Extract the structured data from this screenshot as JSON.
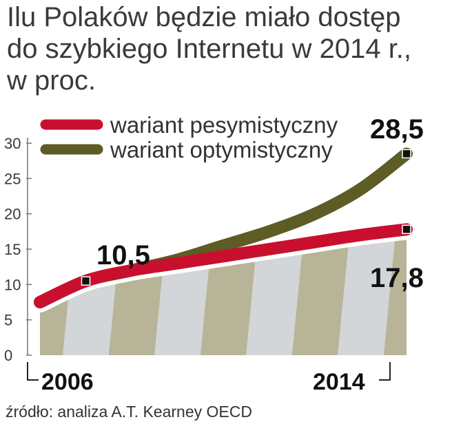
{
  "title": [
    "Ilu Polaków będzie miało dostęp",
    "do szybkiego Internetu w 2014 r.,",
    "w proc."
  ],
  "source": "źródło: analiza A.T. Kearney OECD",
  "colors": {
    "pessimistic": "#c8102e",
    "optimistic": "#5c5c24",
    "band_dark": "#b8b497",
    "band_light": "#d2d6d8"
  },
  "chart_data": {
    "type": "line",
    "x": [
      2006,
      2007,
      2008,
      2009,
      2010,
      2011,
      2012,
      2013,
      2014
    ],
    "x_tick_labels": [
      "2006",
      "2014"
    ],
    "ylim": [
      0,
      30
    ],
    "yticks": [
      "0",
      "5",
      "10",
      "15",
      "20",
      "25",
      "30"
    ],
    "series": [
      {
        "name": "wariant pesymistyczny",
        "color": "#c8102e",
        "values": [
          7.5,
          10.5,
          12,
          13,
          14,
          15,
          16,
          17,
          17.8
        ]
      },
      {
        "name": "wariant optymistyczny",
        "color": "#5c5c24",
        "values": [
          7.5,
          10.5,
          12,
          13.5,
          15.5,
          17.5,
          20,
          23.5,
          28.5
        ]
      }
    ],
    "annotations": [
      {
        "text": "10,5",
        "x": 2007,
        "y": 10.5
      },
      {
        "text": "28,5",
        "x": 2014,
        "y": 28.5
      },
      {
        "text": "17,8",
        "x": 2014,
        "y": 17.8
      }
    ],
    "legend": "top"
  }
}
